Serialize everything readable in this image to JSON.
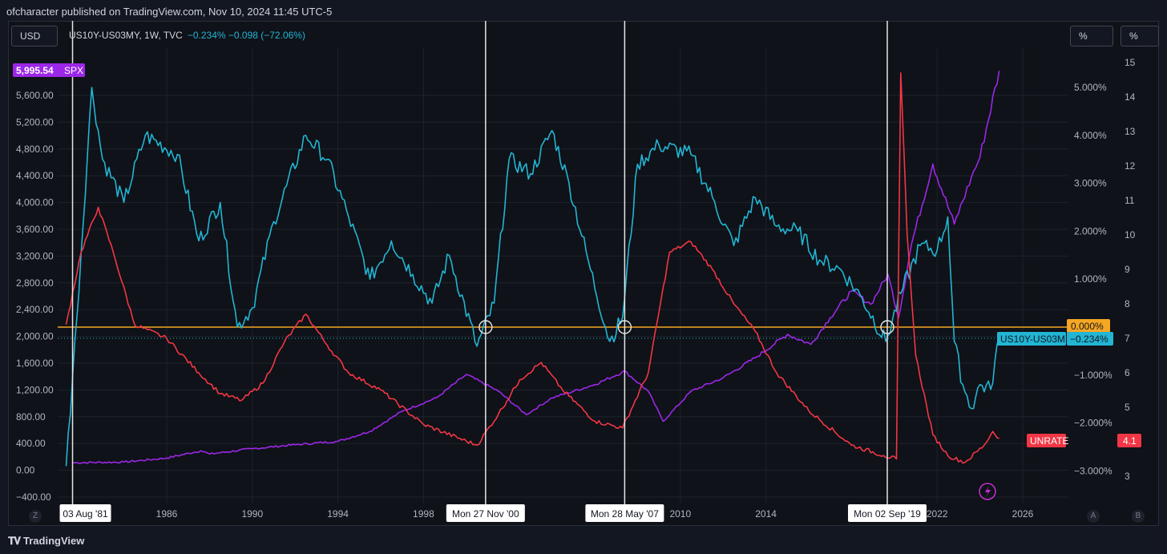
{
  "header": {
    "published": "ofcharacter published on TradingView.com, Nov 10, 2024 11:45 UTC-5"
  },
  "toolbar": {
    "currency": "USD",
    "scale_mid": "%",
    "scale_right": "%"
  },
  "legend": {
    "symbol": "US10Y-US03MY, 1W, TVC",
    "change": "−0.234%  −0.098 (−72.06%)"
  },
  "footer": {
    "brand": "TradingView",
    "corner_left": "Z",
    "corner_a": "A",
    "corner_b": "B"
  },
  "colors": {
    "spx": "#9c27e8",
    "spread": "#22b5d4",
    "unrate": "#f23645",
    "zero_line": "#f5a623",
    "grid": "#1e222d"
  },
  "chart_data": {
    "type": "line",
    "title": "US10Y-US03MY, 1W, TVC",
    "x_ticks": [
      "1986",
      "1990",
      "1994",
      "1998",
      "2010",
      "2014",
      "2022",
      "2026"
    ],
    "date_markers": [
      "03 Aug '81",
      "Mon 27 Nov '00",
      "Mon 28 May '07",
      "Mon 02 Sep '19"
    ],
    "left_axis": {
      "label": "SPX",
      "ticks": [
        "5,600.00",
        "5,200.00",
        "4,800.00",
        "4,400.00",
        "4,000.00",
        "3,600.00",
        "3,200.00",
        "2,800.00",
        "2,400.00",
        "2,000.00",
        "1,600.00",
        "1,200.00",
        "800.00",
        "400.00",
        "0.00",
        "−400.00"
      ],
      "ylim": [
        -500,
        6000
      ],
      "last_label": "5,995.54",
      "last_name": "SPX"
    },
    "mid_axis": {
      "label": "US10Y-US03MY (%)",
      "ticks": [
        "5.000%",
        "4.000%",
        "3.000%",
        "2.000%",
        "1.000%",
        "−1.000%",
        "−2.000%",
        "−3.000%"
      ],
      "zero_label": "0.000%",
      "last_label": "−0.234%",
      "last_name": "US10Y-US03MY"
    },
    "right_axis": {
      "label": "UNRATE (%)",
      "ticks": [
        "15",
        "14",
        "13",
        "12",
        "11",
        "10",
        "9",
        "8",
        "7",
        "6",
        "5",
        "3"
      ],
      "last_label": "4.1",
      "last_name": "UNRATE"
    },
    "series": [
      {
        "name": "SPX",
        "axis": "left",
        "points": [
          [
            1981.6,
            130
          ],
          [
            1984,
            140
          ],
          [
            1986,
            200
          ],
          [
            1987.6,
            310
          ],
          [
            1988,
            260
          ],
          [
            1990,
            340
          ],
          [
            1992,
            400
          ],
          [
            1994,
            450
          ],
          [
            1995.5,
            600
          ],
          [
            1997,
            900
          ],
          [
            1998.6,
            1100
          ],
          [
            2000,
            1450
          ],
          [
            2001.5,
            1200
          ],
          [
            2002.8,
            850
          ],
          [
            2004,
            1100
          ],
          [
            2006,
            1300
          ],
          [
            2007.4,
            1500
          ],
          [
            2008.5,
            1200
          ],
          [
            2009.2,
            750
          ],
          [
            2010.5,
            1200
          ],
          [
            2012,
            1400
          ],
          [
            2013.5,
            1700
          ],
          [
            2015,
            2050
          ],
          [
            2016.1,
            1900
          ],
          [
            2017,
            2300
          ],
          [
            2018,
            2700
          ],
          [
            2018.9,
            2500
          ],
          [
            2019.7,
            2950
          ],
          [
            2020.2,
            2300
          ],
          [
            2020.8,
            3400
          ],
          [
            2021.8,
            4600
          ],
          [
            2022.8,
            3700
          ],
          [
            2023.6,
            4400
          ],
          [
            2024,
            4700
          ],
          [
            2024.9,
            5995
          ]
        ]
      },
      {
        "name": "US10Y-US03MY",
        "axis": "mid",
        "points": [
          [
            1981.3,
            -2.9
          ],
          [
            1981.8,
            0.2
          ],
          [
            1982.5,
            5.0
          ],
          [
            1983,
            3.5
          ],
          [
            1984,
            2.6
          ],
          [
            1985,
            4.0
          ],
          [
            1986.5,
            3.6
          ],
          [
            1987.5,
            1.8
          ],
          [
            1988.5,
            2.6
          ],
          [
            1989.3,
            0.0
          ],
          [
            1990,
            0.4
          ],
          [
            1991,
            2.2
          ],
          [
            1992.5,
            4.0
          ],
          [
            1993.5,
            3.5
          ],
          [
            1994.5,
            2.3
          ],
          [
            1995.5,
            1.0
          ],
          [
            1996.5,
            1.8
          ],
          [
            1997.5,
            1.1
          ],
          [
            1998.4,
            0.5
          ],
          [
            1999.2,
            1.5
          ],
          [
            2000.5,
            -0.4
          ],
          [
            2001.3,
            0.5
          ],
          [
            2002,
            3.5
          ],
          [
            2003,
            3.2
          ],
          [
            2004,
            4.1
          ],
          [
            2004.8,
            3.0
          ],
          [
            2005.8,
            1.2
          ],
          [
            2006.7,
            -0.3
          ],
          [
            2007.3,
            0.2
          ],
          [
            2008,
            3.4
          ],
          [
            2009,
            3.8
          ],
          [
            2010.5,
            3.6
          ],
          [
            2011.5,
            2.7
          ],
          [
            2012.5,
            1.7
          ],
          [
            2013.5,
            2.7
          ],
          [
            2014.5,
            2.1
          ],
          [
            2015.5,
            2.0
          ],
          [
            2016.5,
            1.4
          ],
          [
            2017.5,
            1.2
          ],
          [
            2018.5,
            0.6
          ],
          [
            2019.6,
            -0.3
          ],
          [
            2020.3,
            0.7
          ],
          [
            2021.2,
            1.7
          ],
          [
            2022,
            1.6
          ],
          [
            2022.5,
            2.3
          ],
          [
            2022.8,
            -0.3
          ],
          [
            2023.2,
            -1.2
          ],
          [
            2023.6,
            -1.7
          ],
          [
            2024,
            -1.2
          ],
          [
            2024.5,
            -1.3
          ],
          [
            2024.9,
            -0.2
          ]
        ]
      },
      {
        "name": "UNRATE",
        "axis": "right",
        "points": [
          [
            1981.3,
            7.4
          ],
          [
            1982,
            9.5
          ],
          [
            1982.8,
            10.8
          ],
          [
            1983.5,
            9.5
          ],
          [
            1984.5,
            7.4
          ],
          [
            1986,
            7.0
          ],
          [
            1987.5,
            6.0
          ],
          [
            1988.5,
            5.4
          ],
          [
            1989.5,
            5.2
          ],
          [
            1990.5,
            5.7
          ],
          [
            1991.5,
            6.9
          ],
          [
            1992.5,
            7.7
          ],
          [
            1993.5,
            6.8
          ],
          [
            1994.5,
            6.0
          ],
          [
            1996,
            5.5
          ],
          [
            1998,
            4.5
          ],
          [
            2000.5,
            3.9
          ],
          [
            2001.5,
            4.8
          ],
          [
            2002.5,
            5.8
          ],
          [
            2003.5,
            6.3
          ],
          [
            2004.5,
            5.5
          ],
          [
            2006,
            4.6
          ],
          [
            2007.3,
            4.4
          ],
          [
            2008.5,
            6.0
          ],
          [
            2009.5,
            9.5
          ],
          [
            2010.5,
            9.8
          ],
          [
            2011.5,
            9.0
          ],
          [
            2012.5,
            8.0
          ],
          [
            2013.5,
            7.2
          ],
          [
            2014.5,
            6.0
          ],
          [
            2016,
            4.9
          ],
          [
            2018,
            3.9
          ],
          [
            2019.5,
            3.6
          ],
          [
            2020.1,
            3.5
          ],
          [
            2020.3,
            14.7
          ],
          [
            2020.6,
            10.0
          ],
          [
            2021,
            6.5
          ],
          [
            2021.8,
            4.2
          ],
          [
            2022.5,
            3.6
          ],
          [
            2023.3,
            3.4
          ],
          [
            2024.2,
            3.9
          ],
          [
            2024.6,
            4.3
          ],
          [
            2024.9,
            4.1
          ]
        ]
      }
    ]
  }
}
